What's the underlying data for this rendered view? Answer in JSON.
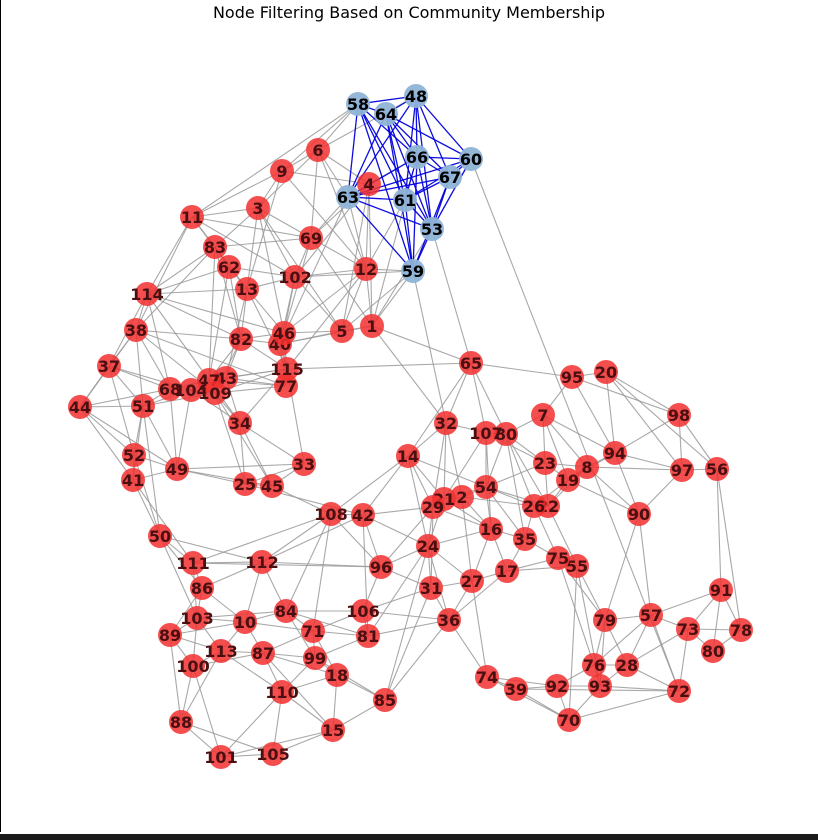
{
  "title": "Node Filtering Based on Community Membership",
  "colors": {
    "background": "#ffffff",
    "highlight_node": "#8fb4d6",
    "highlight_edge": "#0000dd",
    "other_node": "#f2302f",
    "other_edge": "#999999",
    "highlight_label": "#000000",
    "other_label": "#4a0f10"
  },
  "graph": {
    "highlighted_community": [
      "48",
      "53",
      "58",
      "59",
      "60",
      "61",
      "63",
      "64",
      "66",
      "67"
    ],
    "highlight_edges": [
      [
        "58",
        "64"
      ],
      [
        "58",
        "48"
      ],
      [
        "58",
        "66"
      ],
      [
        "58",
        "61"
      ],
      [
        "58",
        "53"
      ],
      [
        "58",
        "59"
      ],
      [
        "58",
        "63"
      ],
      [
        "64",
        "48"
      ],
      [
        "64",
        "66"
      ],
      [
        "64",
        "60"
      ],
      [
        "64",
        "67"
      ],
      [
        "64",
        "61"
      ],
      [
        "64",
        "53"
      ],
      [
        "64",
        "63"
      ],
      [
        "64",
        "59"
      ],
      [
        "48",
        "66"
      ],
      [
        "48",
        "60"
      ],
      [
        "48",
        "67"
      ],
      [
        "48",
        "53"
      ],
      [
        "48",
        "61"
      ],
      [
        "48",
        "63"
      ],
      [
        "66",
        "60"
      ],
      [
        "66",
        "67"
      ],
      [
        "66",
        "61"
      ],
      [
        "66",
        "53"
      ],
      [
        "66",
        "63"
      ],
      [
        "66",
        "59"
      ],
      [
        "60",
        "67"
      ],
      [
        "60",
        "53"
      ],
      [
        "60",
        "63"
      ],
      [
        "60",
        "61"
      ],
      [
        "67",
        "53"
      ],
      [
        "67",
        "61"
      ],
      [
        "67",
        "59"
      ],
      [
        "67",
        "63"
      ],
      [
        "63",
        "61"
      ],
      [
        "63",
        "53"
      ],
      [
        "63",
        "59"
      ],
      [
        "61",
        "53"
      ],
      [
        "61",
        "59"
      ],
      [
        "53",
        "59"
      ]
    ],
    "other_edges": [
      [
        "6",
        "9"
      ],
      [
        "6",
        "3"
      ],
      [
        "6",
        "4"
      ],
      [
        "6",
        "63"
      ],
      [
        "6",
        "58"
      ],
      [
        "6",
        "69"
      ],
      [
        "6",
        "12"
      ],
      [
        "9",
        "11"
      ],
      [
        "9",
        "3"
      ],
      [
        "9",
        "13"
      ],
      [
        "9",
        "12"
      ],
      [
        "9",
        "4"
      ],
      [
        "9",
        "58"
      ],
      [
        "11",
        "3"
      ],
      [
        "11",
        "83"
      ],
      [
        "11",
        "38"
      ],
      [
        "11",
        "114"
      ],
      [
        "11",
        "62"
      ],
      [
        "11",
        "69"
      ],
      [
        "11",
        "102"
      ],
      [
        "3",
        "83"
      ],
      [
        "3",
        "13"
      ],
      [
        "3",
        "69"
      ],
      [
        "3",
        "102"
      ],
      [
        "3",
        "5"
      ],
      [
        "3",
        "46"
      ],
      [
        "4",
        "69"
      ],
      [
        "4",
        "12"
      ],
      [
        "4",
        "1"
      ],
      [
        "4",
        "5"
      ],
      [
        "4",
        "102"
      ],
      [
        "4",
        "66"
      ],
      [
        "83",
        "62"
      ],
      [
        "83",
        "114"
      ],
      [
        "83",
        "13"
      ],
      [
        "83",
        "82"
      ],
      [
        "83",
        "69"
      ],
      [
        "83",
        "38"
      ],
      [
        "83",
        "47"
      ],
      [
        "62",
        "13"
      ],
      [
        "62",
        "102"
      ],
      [
        "62",
        "82"
      ],
      [
        "62",
        "47"
      ],
      [
        "62",
        "114"
      ],
      [
        "13",
        "102"
      ],
      [
        "13",
        "46"
      ],
      [
        "13",
        "82"
      ],
      [
        "13",
        "114"
      ],
      [
        "13",
        "115"
      ],
      [
        "13",
        "43"
      ],
      [
        "102",
        "12"
      ],
      [
        "102",
        "46"
      ],
      [
        "102",
        "40"
      ],
      [
        "102",
        "5"
      ],
      [
        "102",
        "59"
      ],
      [
        "69",
        "102"
      ],
      [
        "69",
        "46"
      ],
      [
        "69",
        "12"
      ],
      [
        "69",
        "1"
      ],
      [
        "12",
        "1"
      ],
      [
        "12",
        "46"
      ],
      [
        "12",
        "115"
      ],
      [
        "12",
        "59"
      ],
      [
        "12",
        "5"
      ],
      [
        "114",
        "38"
      ],
      [
        "114",
        "82"
      ],
      [
        "114",
        "46"
      ],
      [
        "114",
        "37"
      ],
      [
        "114",
        "47"
      ],
      [
        "114",
        "68"
      ],
      [
        "38",
        "37"
      ],
      [
        "38",
        "82"
      ],
      [
        "38",
        "51"
      ],
      [
        "38",
        "68"
      ],
      [
        "38",
        "109"
      ],
      [
        "38",
        "44"
      ],
      [
        "38",
        "77"
      ],
      [
        "82",
        "46"
      ],
      [
        "82",
        "40"
      ],
      [
        "82",
        "109"
      ],
      [
        "82",
        "43"
      ],
      [
        "82",
        "47"
      ],
      [
        "82",
        "115"
      ],
      [
        "46",
        "40"
      ],
      [
        "46",
        "115"
      ],
      [
        "46",
        "77"
      ],
      [
        "46",
        "5"
      ],
      [
        "40",
        "115"
      ],
      [
        "40",
        "77"
      ],
      [
        "40",
        "5"
      ],
      [
        "40",
        "1"
      ],
      [
        "5",
        "1"
      ],
      [
        "1",
        "65"
      ],
      [
        "1",
        "59"
      ],
      [
        "1",
        "32"
      ],
      [
        "37",
        "44"
      ],
      [
        "37",
        "51"
      ],
      [
        "37",
        "52"
      ],
      [
        "37",
        "68"
      ],
      [
        "37",
        "104"
      ],
      [
        "44",
        "51"
      ],
      [
        "44",
        "52"
      ],
      [
        "44",
        "41"
      ],
      [
        "44",
        "49"
      ],
      [
        "44",
        "68"
      ],
      [
        "51",
        "68"
      ],
      [
        "51",
        "104"
      ],
      [
        "51",
        "52"
      ],
      [
        "51",
        "49"
      ],
      [
        "51",
        "41"
      ],
      [
        "51",
        "109"
      ],
      [
        "51",
        "50"
      ],
      [
        "68",
        "104"
      ],
      [
        "68",
        "109"
      ],
      [
        "68",
        "47"
      ],
      [
        "68",
        "43"
      ],
      [
        "68",
        "49"
      ],
      [
        "104",
        "109"
      ],
      [
        "104",
        "47"
      ],
      [
        "104",
        "43"
      ],
      [
        "104",
        "34"
      ],
      [
        "104",
        "49"
      ],
      [
        "47",
        "43"
      ],
      [
        "47",
        "109"
      ],
      [
        "47",
        "115"
      ],
      [
        "47",
        "77"
      ],
      [
        "47",
        "34"
      ],
      [
        "43",
        "109"
      ],
      [
        "43",
        "115"
      ],
      [
        "43",
        "77"
      ],
      [
        "43",
        "34"
      ],
      [
        "109",
        "34"
      ],
      [
        "109",
        "115"
      ],
      [
        "109",
        "77"
      ],
      [
        "109",
        "25"
      ],
      [
        "109",
        "45"
      ],
      [
        "115",
        "77"
      ],
      [
        "115",
        "65"
      ],
      [
        "115",
        "33"
      ],
      [
        "115",
        "34"
      ],
      [
        "52",
        "41"
      ],
      [
        "52",
        "49"
      ],
      [
        "52",
        "50"
      ],
      [
        "41",
        "49"
      ],
      [
        "41",
        "50"
      ],
      [
        "41",
        "111"
      ],
      [
        "49",
        "25"
      ],
      [
        "49",
        "33"
      ],
      [
        "49",
        "45"
      ],
      [
        "34",
        "25"
      ],
      [
        "34",
        "45"
      ],
      [
        "34",
        "33"
      ],
      [
        "25",
        "45"
      ],
      [
        "25",
        "33"
      ],
      [
        "25",
        "42"
      ],
      [
        "45",
        "33"
      ],
      [
        "45",
        "108"
      ],
      [
        "50",
        "111"
      ],
      [
        "50",
        "86"
      ],
      [
        "50",
        "112"
      ],
      [
        "50",
        "103"
      ],
      [
        "111",
        "86"
      ],
      [
        "111",
        "112"
      ],
      [
        "111",
        "103"
      ],
      [
        "111",
        "96"
      ],
      [
        "111",
        "108"
      ],
      [
        "86",
        "103"
      ],
      [
        "86",
        "112"
      ],
      [
        "86",
        "10"
      ],
      [
        "86",
        "89"
      ],
      [
        "112",
        "108"
      ],
      [
        "112",
        "84"
      ],
      [
        "112",
        "96"
      ],
      [
        "112",
        "10"
      ],
      [
        "112",
        "42"
      ],
      [
        "108",
        "42"
      ],
      [
        "108",
        "96"
      ],
      [
        "108",
        "84"
      ],
      [
        "108",
        "71"
      ],
      [
        "108",
        "14"
      ],
      [
        "42",
        "96"
      ],
      [
        "42",
        "14"
      ],
      [
        "42",
        "24"
      ],
      [
        "42",
        "29"
      ],
      [
        "42",
        "81"
      ],
      [
        "103",
        "89"
      ],
      [
        "103",
        "10"
      ],
      [
        "103",
        "113"
      ],
      [
        "103",
        "100"
      ],
      [
        "103",
        "84"
      ],
      [
        "89",
        "113"
      ],
      [
        "89",
        "100"
      ],
      [
        "89",
        "10"
      ],
      [
        "89",
        "88"
      ],
      [
        "10",
        "113"
      ],
      [
        "10",
        "87"
      ],
      [
        "10",
        "84"
      ],
      [
        "10",
        "71"
      ],
      [
        "113",
        "100"
      ],
      [
        "113",
        "87"
      ],
      [
        "113",
        "88"
      ],
      [
        "113",
        "110"
      ],
      [
        "100",
        "88"
      ],
      [
        "100",
        "87"
      ],
      [
        "100",
        "101"
      ],
      [
        "87",
        "99"
      ],
      [
        "87",
        "110"
      ],
      [
        "87",
        "71"
      ],
      [
        "87",
        "18"
      ],
      [
        "87",
        "15"
      ],
      [
        "84",
        "71"
      ],
      [
        "84",
        "81"
      ],
      [
        "84",
        "106"
      ],
      [
        "84",
        "99"
      ],
      [
        "71",
        "99"
      ],
      [
        "71",
        "81"
      ],
      [
        "71",
        "18"
      ],
      [
        "71",
        "106"
      ],
      [
        "81",
        "106"
      ],
      [
        "81",
        "99"
      ],
      [
        "81",
        "36"
      ],
      [
        "81",
        "24"
      ],
      [
        "106",
        "96"
      ],
      [
        "106",
        "36"
      ],
      [
        "106",
        "31"
      ],
      [
        "99",
        "18"
      ],
      [
        "99",
        "110"
      ],
      [
        "99",
        "85"
      ],
      [
        "18",
        "110"
      ],
      [
        "18",
        "85"
      ],
      [
        "18",
        "15"
      ],
      [
        "110",
        "15"
      ],
      [
        "110",
        "105"
      ],
      [
        "110",
        "101"
      ],
      [
        "88",
        "101"
      ],
      [
        "88",
        "105"
      ],
      [
        "101",
        "105"
      ],
      [
        "101",
        "15"
      ],
      [
        "105",
        "15"
      ],
      [
        "15",
        "85"
      ],
      [
        "85",
        "36"
      ],
      [
        "85",
        "31"
      ],
      [
        "85",
        "24"
      ],
      [
        "96",
        "24"
      ],
      [
        "96",
        "31"
      ],
      [
        "96",
        "29"
      ],
      [
        "65",
        "32"
      ],
      [
        "65",
        "107"
      ],
      [
        "65",
        "95"
      ],
      [
        "65",
        "80"
      ],
      [
        "65",
        "14"
      ],
      [
        "32",
        "107"
      ],
      [
        "32",
        "14"
      ],
      [
        "32",
        "21"
      ],
      [
        "32",
        "29"
      ],
      [
        "32",
        "2"
      ],
      [
        "107",
        "80"
      ],
      [
        "107",
        "54"
      ],
      [
        "107",
        "21"
      ],
      [
        "107",
        "23"
      ],
      [
        "107",
        "16"
      ],
      [
        "80",
        "7"
      ],
      [
        "80",
        "54"
      ],
      [
        "80",
        "26"
      ],
      [
        "80",
        "22"
      ],
      [
        "80",
        "23"
      ],
      [
        "80",
        "35"
      ],
      [
        "14",
        "29"
      ],
      [
        "14",
        "21"
      ],
      [
        "14",
        "24"
      ],
      [
        "14",
        "54"
      ],
      [
        "29",
        "21"
      ],
      [
        "29",
        "2"
      ],
      [
        "29",
        "24"
      ],
      [
        "29",
        "16"
      ],
      [
        "29",
        "31"
      ],
      [
        "21",
        "2"
      ],
      [
        "21",
        "54"
      ],
      [
        "21",
        "16"
      ],
      [
        "21",
        "24"
      ],
      [
        "2",
        "54"
      ],
      [
        "2",
        "16"
      ],
      [
        "2",
        "26"
      ],
      [
        "2",
        "27"
      ],
      [
        "54",
        "26"
      ],
      [
        "54",
        "22"
      ],
      [
        "54",
        "16"
      ],
      [
        "54",
        "35"
      ],
      [
        "54",
        "23"
      ],
      [
        "16",
        "35"
      ],
      [
        "16",
        "24"
      ],
      [
        "16",
        "27"
      ],
      [
        "16",
        "17"
      ],
      [
        "24",
        "31"
      ],
      [
        "24",
        "27"
      ],
      [
        "24",
        "36"
      ],
      [
        "31",
        "27"
      ],
      [
        "31",
        "36"
      ],
      [
        "27",
        "17"
      ],
      [
        "27",
        "36"
      ],
      [
        "27",
        "74"
      ],
      [
        "35",
        "17"
      ],
      [
        "35",
        "75"
      ],
      [
        "35",
        "26"
      ],
      [
        "17",
        "75"
      ],
      [
        "17",
        "55"
      ],
      [
        "17",
        "36"
      ],
      [
        "26",
        "22"
      ],
      [
        "26",
        "19"
      ],
      [
        "26",
        "75"
      ],
      [
        "22",
        "19"
      ],
      [
        "22",
        "23"
      ],
      [
        "22",
        "8"
      ],
      [
        "22",
        "55"
      ],
      [
        "7",
        "23"
      ],
      [
        "7",
        "19"
      ],
      [
        "7",
        "95"
      ],
      [
        "7",
        "94"
      ],
      [
        "7",
        "8"
      ],
      [
        "23",
        "19"
      ],
      [
        "23",
        "8"
      ],
      [
        "19",
        "8"
      ],
      [
        "19",
        "94"
      ],
      [
        "19",
        "90"
      ],
      [
        "8",
        "94"
      ],
      [
        "8",
        "97"
      ],
      [
        "8",
        "90"
      ],
      [
        "95",
        "20"
      ],
      [
        "95",
        "98"
      ],
      [
        "95",
        "94"
      ],
      [
        "20",
        "98"
      ],
      [
        "20",
        "94"
      ],
      [
        "20",
        "56"
      ],
      [
        "20",
        "97"
      ],
      [
        "98",
        "94"
      ],
      [
        "98",
        "97"
      ],
      [
        "98",
        "56"
      ],
      [
        "94",
        "97"
      ],
      [
        "94",
        "90"
      ],
      [
        "97",
        "56"
      ],
      [
        "97",
        "90"
      ],
      [
        "56",
        "91"
      ],
      [
        "56",
        "78"
      ],
      [
        "90",
        "57"
      ],
      [
        "90",
        "79"
      ],
      [
        "91",
        "78"
      ],
      [
        "91",
        "73"
      ],
      [
        "91",
        "57"
      ],
      [
        "91",
        "80"
      ],
      [
        "78",
        "73"
      ],
      [
        "78",
        "80"
      ],
      [
        "73",
        "80"
      ],
      [
        "73",
        "57"
      ],
      [
        "73",
        "72"
      ],
      [
        "73",
        "28"
      ],
      [
        "57",
        "79"
      ],
      [
        "57",
        "28"
      ],
      [
        "57",
        "76"
      ],
      [
        "57",
        "72"
      ],
      [
        "79",
        "76"
      ],
      [
        "79",
        "28"
      ],
      [
        "79",
        "93"
      ],
      [
        "76",
        "28"
      ],
      [
        "76",
        "93"
      ],
      [
        "76",
        "92"
      ],
      [
        "28",
        "93"
      ],
      [
        "28",
        "72"
      ],
      [
        "93",
        "72"
      ],
      [
        "93",
        "92"
      ],
      [
        "93",
        "70"
      ],
      [
        "92",
        "39"
      ],
      [
        "92",
        "70"
      ],
      [
        "92",
        "74"
      ],
      [
        "39",
        "74"
      ],
      [
        "39",
        "70"
      ],
      [
        "39",
        "72"
      ],
      [
        "74",
        "36"
      ],
      [
        "74",
        "70"
      ],
      [
        "70",
        "72"
      ],
      [
        "75",
        "55"
      ],
      [
        "75",
        "79"
      ],
      [
        "75",
        "76"
      ],
      [
        "55",
        "79"
      ],
      [
        "55",
        "93"
      ],
      [
        "55",
        "70"
      ],
      [
        "53",
        "65"
      ],
      [
        "53",
        "1"
      ],
      [
        "59",
        "5"
      ],
      [
        "59",
        "32"
      ],
      [
        "60",
        "72"
      ],
      [
        "61",
        "12"
      ],
      [
        "63",
        "4"
      ],
      [
        "63",
        "69"
      ],
      [
        "63",
        "12"
      ],
      [
        "63",
        "40"
      ],
      [
        "58",
        "11"
      ],
      [
        "48",
        "6"
      ],
      [
        "66",
        "1"
      ]
    ]
  }
}
